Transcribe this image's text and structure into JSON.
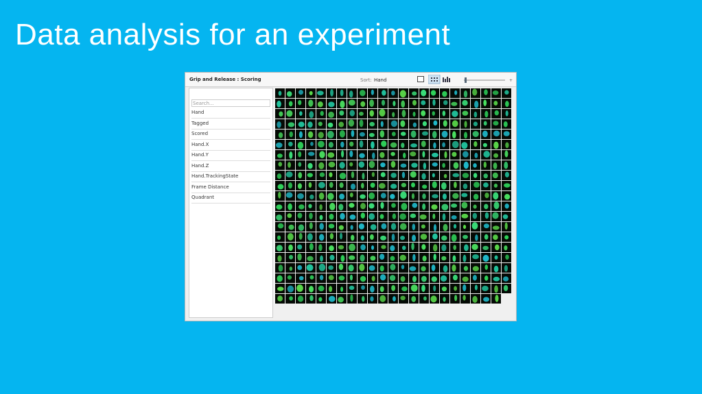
{
  "slide_title": "Data analysis for an experiment",
  "window": {
    "title": "Grip and Release : Scoring",
    "sort_label": "Sort:",
    "sort_value": "Hand"
  },
  "sidebar": {
    "search_placeholder": "Search...",
    "items": [
      "Hand",
      "Tagged",
      "Scored",
      "Hand.X",
      "Hand.Y",
      "Hand.Z",
      "Hand.TrackingState",
      "Frame Distance",
      "Quadrant"
    ]
  }
}
